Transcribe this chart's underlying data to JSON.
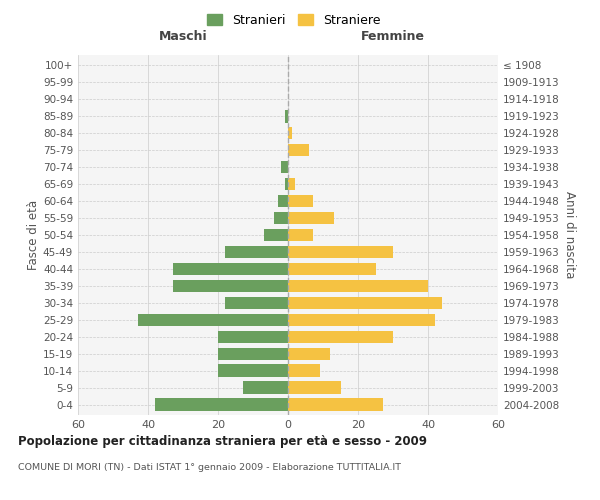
{
  "age_groups": [
    "0-4",
    "5-9",
    "10-14",
    "15-19",
    "20-24",
    "25-29",
    "30-34",
    "35-39",
    "40-44",
    "45-49",
    "50-54",
    "55-59",
    "60-64",
    "65-69",
    "70-74",
    "75-79",
    "80-84",
    "85-89",
    "90-94",
    "95-99",
    "100+"
  ],
  "birth_years": [
    "2004-2008",
    "1999-2003",
    "1994-1998",
    "1989-1993",
    "1984-1988",
    "1979-1983",
    "1974-1978",
    "1969-1973",
    "1964-1968",
    "1959-1963",
    "1954-1958",
    "1949-1953",
    "1944-1948",
    "1939-1943",
    "1934-1938",
    "1929-1933",
    "1924-1928",
    "1919-1923",
    "1914-1918",
    "1909-1913",
    "≤ 1908"
  ],
  "males": [
    38,
    13,
    20,
    20,
    20,
    43,
    18,
    33,
    33,
    18,
    7,
    4,
    3,
    1,
    2,
    0,
    0,
    1,
    0,
    0,
    0
  ],
  "females": [
    27,
    15,
    9,
    12,
    30,
    42,
    44,
    40,
    25,
    30,
    7,
    13,
    7,
    2,
    0,
    6,
    1,
    0,
    0,
    0,
    0
  ],
  "male_color": "#6a9f5e",
  "female_color": "#f5c242",
  "title": "Popolazione per cittadinanza straniera per età e sesso - 2009",
  "subtitle": "COMUNE DI MORI (TN) - Dati ISTAT 1° gennaio 2009 - Elaborazione TUTTITALIA.IT",
  "ylabel_left": "Fasce di età",
  "ylabel_right": "Anni di nascita",
  "xlabel_left": "Maschi",
  "xlabel_right": "Femmine",
  "legend_male": "Stranieri",
  "legend_female": "Straniere",
  "xlim": 60,
  "background_color": "#f5f5f5",
  "grid_color": "#cccccc"
}
